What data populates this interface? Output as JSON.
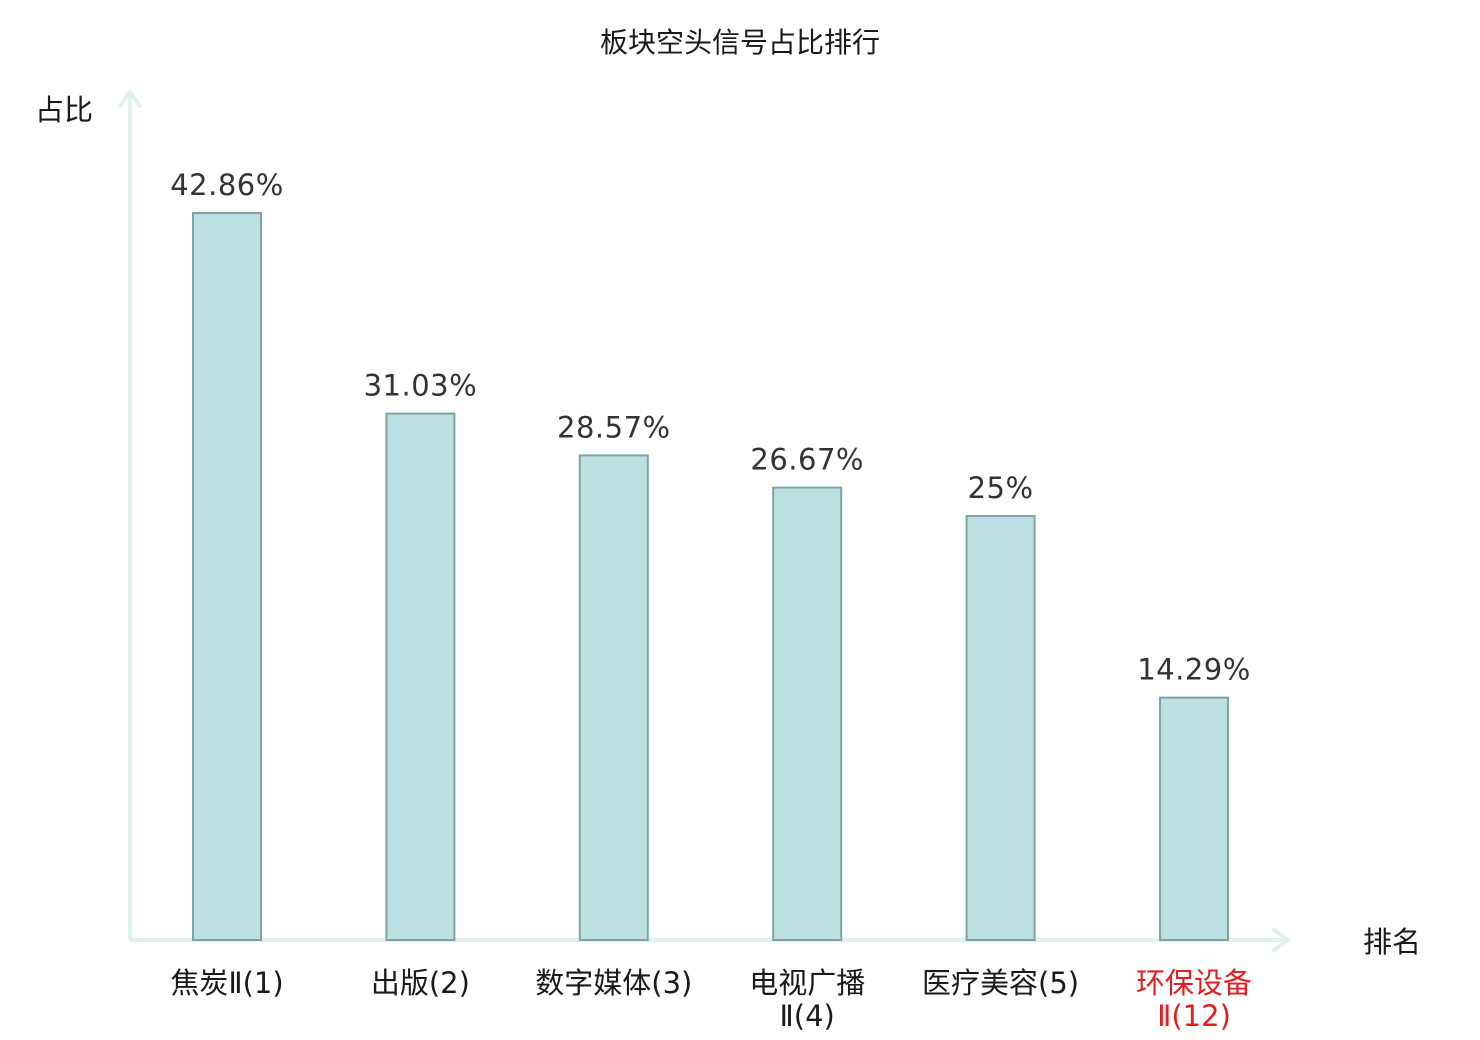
{
  "chart_data": {
    "type": "bar",
    "title": "板块空头信号占比排行",
    "ylabel": "占比",
    "xlabel": "排名",
    "ylim": [
      0,
      50
    ],
    "grid": false,
    "categories": [
      "焦炭Ⅱ(1)",
      "出版(2)",
      "数字媒体(3)",
      "电视广播Ⅱ(4)",
      "医疗美容(5)",
      "环保设备Ⅱ(12)"
    ],
    "category_lines": [
      [
        "焦炭Ⅱ(1)"
      ],
      [
        "出版(2)"
      ],
      [
        "数字媒体(3)"
      ],
      [
        "电视广播",
        "Ⅱ(4)"
      ],
      [
        "医疗美容(5)"
      ],
      [
        "环保设备",
        "Ⅱ(12)"
      ]
    ],
    "values": [
      42.86,
      31.03,
      28.57,
      26.67,
      25,
      14.29
    ],
    "value_labels": [
      "42.86%",
      "31.03%",
      "28.57%",
      "26.67%",
      "25%",
      "14.29%"
    ],
    "highlight_index": 5
  },
  "colors": {
    "bar_fill": "#bde0e2",
    "bar_stroke": "#7fa3a5",
    "axis": "#dff2ee",
    "text": "#1a1a1a",
    "value_text": "#333333",
    "highlight_text": "#e02020"
  }
}
